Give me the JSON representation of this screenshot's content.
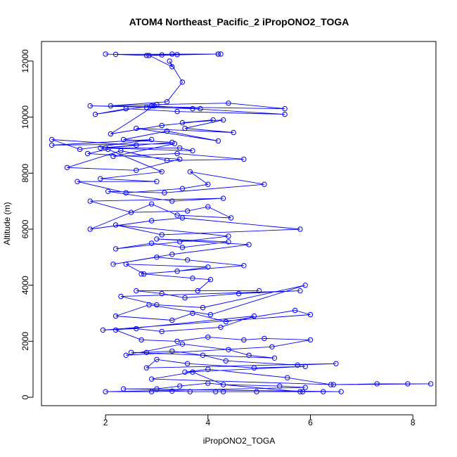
{
  "chart_data": {
    "type": "scatter",
    "title": "ATOM4 Northeast_Pacific_2 iPropONO2_TOGA",
    "xlabel": "iPropONO2_TOGA",
    "ylabel": "Altitude (m)",
    "xlim": [
      0.75,
      8.45
    ],
    "ylim": [
      -300,
      12700
    ],
    "xticks": [
      2,
      4,
      6,
      8
    ],
    "yticks": [
      0,
      2000,
      4000,
      6000,
      8000,
      10000,
      12000
    ],
    "grid": false,
    "legend": "none",
    "color": "#0000ff",
    "series": [
      {
        "points": [
          [
            2.0,
            12250
          ],
          [
            2.8,
            12200
          ],
          [
            3.1,
            12220
          ],
          [
            3.3,
            12250
          ],
          [
            4.2,
            12250
          ],
          [
            4.25,
            12250
          ],
          [
            3.4,
            12230
          ],
          [
            2.2,
            12240
          ],
          [
            4.2,
            12250
          ],
          [
            2.85,
            12200
          ],
          [
            3.3,
            11800
          ],
          [
            3.25,
            12000
          ],
          [
            3.5,
            11250
          ],
          [
            3.2,
            10550
          ],
          [
            2.1,
            10400
          ],
          [
            3.0,
            10450
          ],
          [
            4.4,
            10500
          ],
          [
            5.5,
            10300
          ],
          [
            1.7,
            10400
          ],
          [
            2.8,
            10350
          ],
          [
            3.7,
            10300
          ],
          [
            5.5,
            10100
          ],
          [
            3.4,
            10200
          ],
          [
            2.4,
            10300
          ],
          [
            1.8,
            10100
          ],
          [
            2.9,
            10400
          ],
          [
            3.85,
            10300
          ],
          [
            2.95,
            10400
          ],
          [
            2.1,
            9400
          ],
          [
            3.1,
            9700
          ],
          [
            4.1,
            9900
          ],
          [
            3.5,
            9800
          ],
          [
            4.3,
            9900
          ],
          [
            3.55,
            9600
          ],
          [
            4.5,
            9450
          ],
          [
            2.6,
            9600
          ],
          [
            4.2,
            9150
          ],
          [
            3.2,
            9500
          ],
          [
            2.35,
            9200
          ],
          [
            3.3,
            9100
          ],
          [
            2.0,
            8900
          ],
          [
            3.45,
            8900
          ],
          [
            3.7,
            8800
          ],
          [
            1.9,
            8900
          ],
          [
            2.6,
            9000
          ],
          [
            0.95,
            9200
          ],
          [
            1.5,
            8850
          ],
          [
            2.9,
            9200
          ],
          [
            0.95,
            9000
          ],
          [
            3.35,
            9050
          ],
          [
            2.15,
            8600
          ],
          [
            3.4,
            8700
          ],
          [
            4.7,
            8500
          ],
          [
            3.2,
            8450
          ],
          [
            2.3,
            8800
          ],
          [
            1.25,
            8200
          ],
          [
            2.6,
            8100
          ],
          [
            3.45,
            8500
          ],
          [
            1.65,
            8700
          ],
          [
            2.05,
            8850
          ],
          [
            3.1,
            8050
          ],
          [
            1.9,
            7800
          ],
          [
            3.0,
            7700
          ],
          [
            1.45,
            7700
          ],
          [
            2.4,
            7300
          ],
          [
            3.5,
            7450
          ],
          [
            4.0,
            7600
          ],
          [
            3.65,
            8050
          ],
          [
            5.1,
            7600
          ],
          [
            3.15,
            7300
          ],
          [
            2.05,
            7350
          ],
          [
            3.3,
            7000
          ],
          [
            4.3,
            7100
          ],
          [
            1.7,
            7000
          ],
          [
            2.5,
            6600
          ],
          [
            3.6,
            6650
          ],
          [
            4.0,
            6800
          ],
          [
            4.45,
            6400
          ],
          [
            3.4,
            6500
          ],
          [
            2.9,
            6900
          ],
          [
            1.7,
            6000
          ],
          [
            2.9,
            6300
          ],
          [
            3.5,
            6400
          ],
          [
            5.8,
            6000
          ],
          [
            3.1,
            5800
          ],
          [
            2.2,
            6150
          ],
          [
            4.4,
            5750
          ],
          [
            3.45,
            5550
          ],
          [
            2.2,
            5300
          ],
          [
            2.9,
            5500
          ],
          [
            3.5,
            5350
          ],
          [
            4.4,
            5550
          ],
          [
            3.0,
            5650
          ],
          [
            4.8,
            5450
          ],
          [
            3.3,
            5100
          ],
          [
            2.15,
            4750
          ],
          [
            3.0,
            5000
          ],
          [
            3.6,
            4900
          ],
          [
            4.7,
            4700
          ],
          [
            2.7,
            4400
          ],
          [
            3.4,
            4500
          ],
          [
            4.0,
            4650
          ],
          [
            2.4,
            4750
          ],
          [
            2.75,
            4400
          ],
          [
            3.7,
            4250
          ],
          [
            4.05,
            4200
          ],
          [
            3.8,
            3800
          ],
          [
            5.0,
            3800
          ],
          [
            2.6,
            3800
          ],
          [
            3.1,
            3700
          ],
          [
            3.55,
            3550
          ],
          [
            4.6,
            3700
          ],
          [
            5.8,
            3800
          ],
          [
            2.3,
            3600
          ],
          [
            3.0,
            3300
          ],
          [
            3.9,
            3200
          ],
          [
            5.9,
            4000
          ],
          [
            4.05,
            2950
          ],
          [
            2.85,
            3300
          ],
          [
            2.2,
            2900
          ],
          [
            3.3,
            2750
          ],
          [
            3.7,
            3000
          ],
          [
            4.35,
            2700
          ],
          [
            5.7,
            3100
          ],
          [
            6.0,
            2950
          ],
          [
            1.95,
            2400
          ],
          [
            2.6,
            2450
          ],
          [
            3.1,
            2350
          ],
          [
            4.25,
            2500
          ],
          [
            4.9,
            2900
          ],
          [
            2.2,
            2400
          ],
          [
            2.7,
            2050
          ],
          [
            3.4,
            2000
          ],
          [
            4.0,
            2150
          ],
          [
            4.7,
            2050
          ],
          [
            5.1,
            2100
          ],
          [
            6.0,
            2050
          ],
          [
            5.25,
            1800
          ],
          [
            2.4,
            1500
          ],
          [
            3.5,
            1900
          ],
          [
            4.4,
            1700
          ],
          [
            4.8,
            1500
          ],
          [
            5.3,
            1400
          ],
          [
            2.5,
            1600
          ],
          [
            2.8,
            1600
          ],
          [
            3.3,
            1650
          ],
          [
            3.9,
            1500
          ],
          [
            4.35,
            1300
          ],
          [
            5.75,
            1150
          ],
          [
            6.5,
            1200
          ],
          [
            2.8,
            1050
          ],
          [
            3.0,
            1350
          ],
          [
            3.6,
            1200
          ],
          [
            4.9,
            1050
          ],
          [
            5.9,
            1100
          ],
          [
            3.55,
            900
          ],
          [
            4.0,
            1000
          ],
          [
            5.55,
            700
          ],
          [
            6.4,
            450
          ],
          [
            7.3,
            480
          ],
          [
            7.9,
            480
          ],
          [
            8.35,
            480
          ],
          [
            6.45,
            450
          ],
          [
            2.9,
            650
          ],
          [
            3.7,
            900
          ],
          [
            4.3,
            450
          ],
          [
            5.4,
            400
          ],
          [
            5.9,
            350
          ],
          [
            2.0,
            200
          ],
          [
            2.9,
            200
          ],
          [
            3.3,
            220
          ],
          [
            3.65,
            200
          ],
          [
            4.15,
            200
          ],
          [
            4.3,
            200
          ],
          [
            4.95,
            200
          ],
          [
            5.85,
            200
          ],
          [
            6.25,
            200
          ],
          [
            6.6,
            200
          ],
          [
            2.35,
            300
          ],
          [
            3.0,
            300
          ],
          [
            3.45,
            400
          ],
          [
            4.0,
            500
          ],
          [
            5.8,
            200
          ]
        ]
      }
    ]
  }
}
